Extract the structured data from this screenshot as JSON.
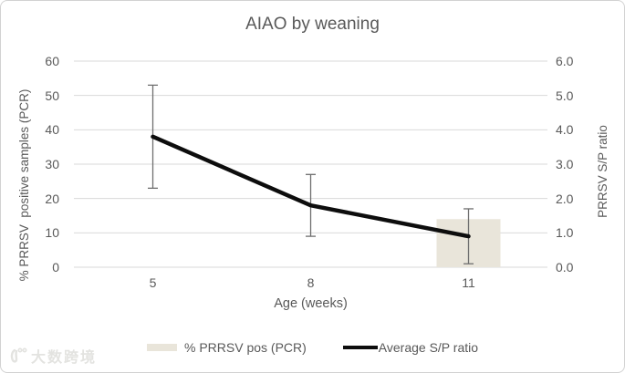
{
  "chart_data": {
    "type": "combo",
    "title": "AIAO by weaning",
    "categories": [
      "5",
      "8",
      "11"
    ],
    "xlabel": "Age (weeks)",
    "left_axis": {
      "label": "% PRRSV  positive samples (PCR)",
      "min": 0,
      "max": 60,
      "step": 10,
      "tick_labels": [
        "60",
        "50",
        "40",
        "30",
        "20",
        "10",
        "0"
      ]
    },
    "right_axis": {
      "label": "PRRSV S/P ratio",
      "min": 0,
      "max": 6,
      "step": 1,
      "tick_labels": [
        "6.0",
        "5.0",
        "4.0",
        "3.0",
        "2.0",
        "1.0",
        "0.0"
      ]
    },
    "series": [
      {
        "name": "% PRRSV pos (PCR)",
        "type": "bar",
        "axis": "left",
        "color": "#e9e5da",
        "values": [
          0,
          0,
          14
        ]
      },
      {
        "name": "Average S/P ratio",
        "type": "line",
        "axis": "right",
        "color": "#0d0d0d",
        "values": [
          3.8,
          1.8,
          0.9
        ],
        "error_bars": {
          "low": [
            2.3,
            0.9,
            0.1
          ],
          "high": [
            5.3,
            2.7,
            1.7
          ],
          "color": "#6e6e6e"
        }
      }
    ],
    "legend_position": "bottom",
    "grid": true
  },
  "colors": {
    "grid": "#d9d9d9",
    "text": "#595959",
    "border": "#d2d2d2",
    "background": "#ffffff"
  },
  "watermark": {
    "text": "大数跨境"
  }
}
